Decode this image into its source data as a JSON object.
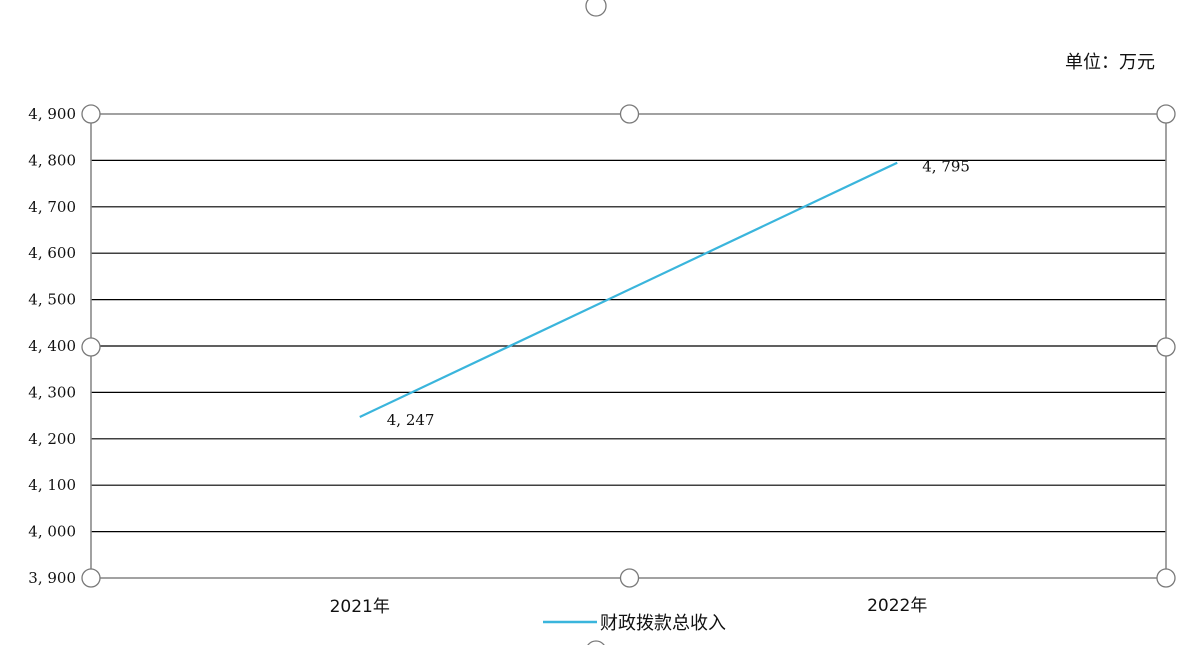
{
  "chart_data": {
    "type": "line",
    "unit": "单位：万元",
    "categories": [
      "2021年",
      "2022年"
    ],
    "series": [
      {
        "name": "财政拨款总收入",
        "values": [
          4247,
          4795
        ],
        "data_labels": [
          "4, 247",
          "4, 795"
        ],
        "color": "#3ab5dc"
      }
    ],
    "ylim": [
      3900,
      4900
    ],
    "y_ticks": [
      3900,
      4000,
      4100,
      4200,
      4300,
      4400,
      4500,
      4600,
      4700,
      4800,
      4900
    ],
    "y_tick_labels": [
      "3, 900",
      "4, 000",
      "4, 100",
      "4, 200",
      "4, 300",
      "4, 400",
      "4, 500",
      "4, 600",
      "4, 700",
      "4, 800",
      "4, 900"
    ],
    "grid": true,
    "legend_position": "bottom",
    "gridline_color": "#000000",
    "frame_color": "#8a8a8a"
  }
}
